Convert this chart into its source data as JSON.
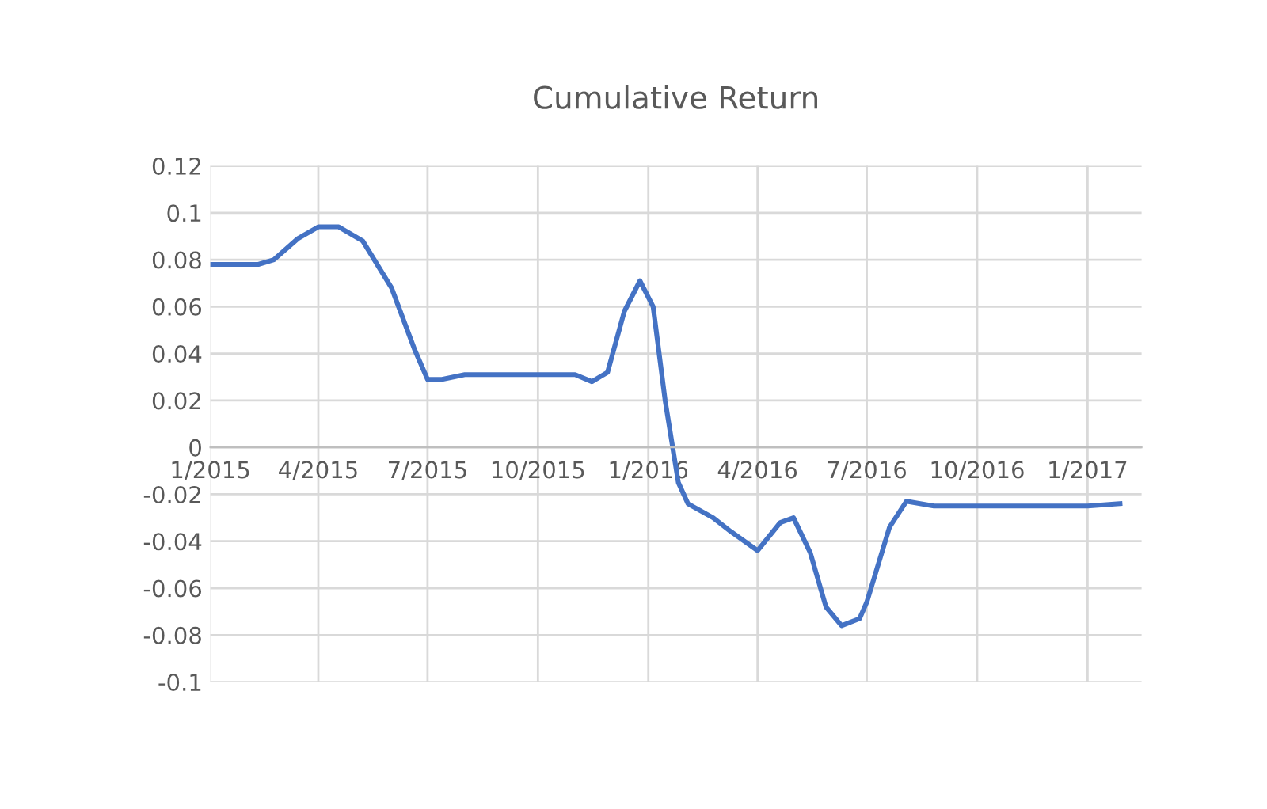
{
  "chart_data": {
    "type": "line",
    "title": "Cumulative Return",
    "x": [
      "2015-01-01",
      "2015-01-23",
      "2015-02-10",
      "2015-02-23",
      "2015-03-15",
      "2015-04-01",
      "2015-04-18",
      "2015-05-08",
      "2015-06-01",
      "2015-06-20",
      "2015-07-01",
      "2015-07-13",
      "2015-08-01",
      "2015-10-01",
      "2015-11-01",
      "2015-11-15",
      "2015-11-28",
      "2015-12-12",
      "2015-12-25",
      "2016-01-05",
      "2016-01-15",
      "2016-01-26",
      "2016-02-03",
      "2016-02-24",
      "2016-03-10",
      "2016-04-01",
      "2016-04-20",
      "2016-05-01",
      "2016-05-15",
      "2016-05-28",
      "2016-06-10",
      "2016-06-25",
      "2016-07-01",
      "2016-07-20",
      "2016-08-03",
      "2016-08-26",
      "2016-10-01",
      "2017-01-01",
      "2017-01-28"
    ],
    "series": [
      {
        "color": "#4472c4",
        "values": [
          0.078,
          0.078,
          0.078,
          0.08,
          0.089,
          0.094,
          0.094,
          0.088,
          0.068,
          0.042,
          0.029,
          0.029,
          0.031,
          0.031,
          0.031,
          0.028,
          0.032,
          0.058,
          0.071,
          0.06,
          0.02,
          -0.015,
          -0.024,
          -0.03,
          -0.036,
          -0.044,
          -0.032,
          -0.03,
          -0.045,
          -0.068,
          -0.076,
          -0.073,
          -0.066,
          -0.034,
          -0.023,
          -0.025,
          -0.025,
          -0.025,
          -0.024
        ]
      }
    ],
    "xlim": [
      "2015-01-01",
      "2017-02-15"
    ],
    "xticks": [
      {
        "value": "2015-01-01",
        "label": "1/2015"
      },
      {
        "value": "2015-04-01",
        "label": "4/2015"
      },
      {
        "value": "2015-07-01",
        "label": "7/2015"
      },
      {
        "value": "2015-10-01",
        "label": "10/2015"
      },
      {
        "value": "2016-01-01",
        "label": "1/2016"
      },
      {
        "value": "2016-04-01",
        "label": "4/2016"
      },
      {
        "value": "2016-07-01",
        "label": "7/2016"
      },
      {
        "value": "2016-10-01",
        "label": "10/2016"
      },
      {
        "value": "2017-01-01",
        "label": "1/2017"
      }
    ],
    "ylim": [
      -0.1,
      0.12
    ],
    "yticks": [
      0.12,
      0.1,
      0.08,
      0.06,
      0.04,
      0.02,
      0,
      -0.02,
      -0.04,
      -0.06,
      -0.08,
      -0.1
    ],
    "grid": true,
    "legend": false,
    "marker": "none",
    "line_style": "solid"
  }
}
